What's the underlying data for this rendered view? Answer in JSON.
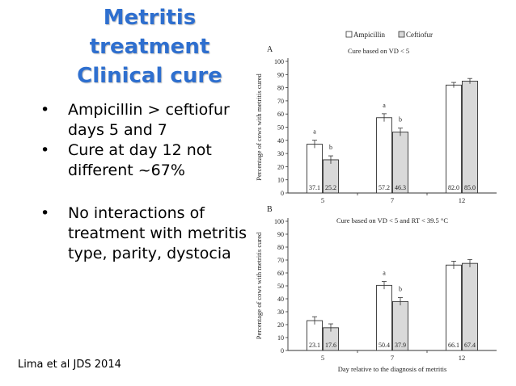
{
  "slide": {
    "title_lines": [
      "Metritis",
      "treatment",
      "Clinical cure"
    ],
    "bullets": [
      "Ampicillin > ceftiofur days 5 and 7",
      "Cure at day 12 not different ~67%",
      "No interactions of treatment with metritis type, parity, dystocia"
    ],
    "citation": "Lima et al JDS 2014"
  },
  "colors": {
    "title": "#2e6fcf",
    "ampicillin": "#ffffff",
    "ceftiofur": "#d9d9d9"
  },
  "chart_data": [
    {
      "type": "bar",
      "panel": "A",
      "subtitle": "Cure based on VD < 5",
      "ylabel": "Percentage of cows with metritis cured",
      "xlabel": "",
      "ylim": [
        0,
        100
      ],
      "yticks": [
        0,
        10,
        20,
        30,
        40,
        50,
        60,
        70,
        80,
        90,
        100
      ],
      "categories": [
        "5",
        "7",
        "12"
      ],
      "legend": [
        "Ampicillin",
        "Ceftiofur"
      ],
      "legend_position": "top",
      "series": [
        {
          "name": "Ampicillin",
          "values": [
            37.1,
            57.2,
            82.0
          ],
          "labels": [
            "37.1",
            "57.2",
            "82.0"
          ],
          "err": [
            3,
            3,
            2
          ],
          "sig": [
            "a",
            "a",
            ""
          ]
        },
        {
          "name": "Ceftiofur",
          "values": [
            25.2,
            46.3,
            85.0
          ],
          "labels": [
            "25.2",
            "46.3",
            "85.0"
          ],
          "err": [
            3,
            3,
            2
          ],
          "sig": [
            "b",
            "b",
            ""
          ]
        }
      ]
    },
    {
      "type": "bar",
      "panel": "B",
      "subtitle": "Cure based on VD < 5 and RT < 39.5 °C",
      "ylabel": "Percentage of cows with metritis cured",
      "xlabel": "Day relative to the diagnosis of metritis",
      "ylim": [
        0,
        100
      ],
      "yticks": [
        0,
        10,
        20,
        30,
        40,
        50,
        60,
        70,
        80,
        90,
        100
      ],
      "categories": [
        "5",
        "7",
        "12"
      ],
      "series": [
        {
          "name": "Ampicillin",
          "values": [
            23.1,
            50.4,
            66.1
          ],
          "labels": [
            "23.1",
            "50.4",
            "66.1"
          ],
          "err": [
            3,
            3,
            3
          ],
          "sig": [
            "",
            "a",
            ""
          ]
        },
        {
          "name": "Ceftiofur",
          "values": [
            17.6,
            37.9,
            67.4
          ],
          "labels": [
            "17.6",
            "37.9",
            "67.4"
          ],
          "err": [
            3,
            3,
            3
          ],
          "sig": [
            "",
            "b",
            ""
          ]
        }
      ]
    }
  ]
}
